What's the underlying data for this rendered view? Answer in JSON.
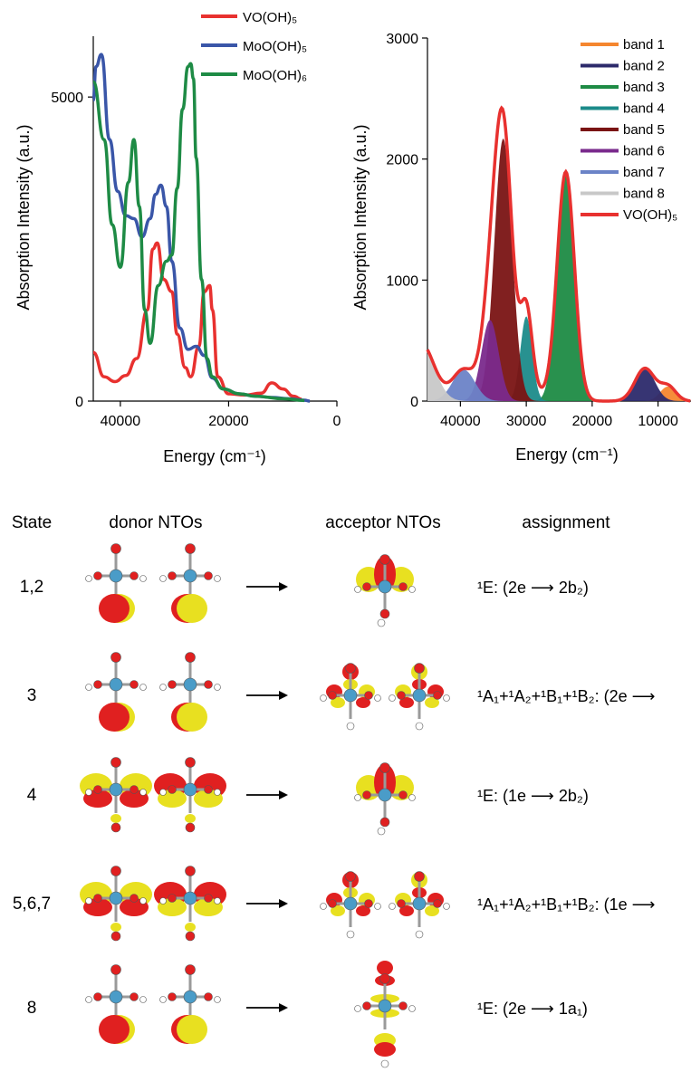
{
  "chart_data": [
    {
      "type": "line",
      "xlabel": "Energy (cm⁻¹)",
      "ylabel": "Absorption Intensity (a.u.)",
      "xlim": [
        45000,
        0
      ],
      "ylim": [
        0,
        6000
      ],
      "xticks": [
        "40000",
        "20000",
        "0"
      ],
      "yticks": [
        "0",
        "5000"
      ],
      "legend_position": "top",
      "series": [
        {
          "name": "VO(OH)₅",
          "color": "#e8312f",
          "x": [
            45000,
            43000,
            41000,
            39000,
            37000,
            35000,
            34000,
            33200,
            32000,
            30500,
            29500,
            28000,
            27000,
            25500,
            24500,
            23500,
            23000,
            22000,
            20000,
            17000,
            14000,
            12000,
            10000,
            8000,
            6500
          ],
          "y": [
            800,
            400,
            320,
            420,
            700,
            1500,
            2500,
            2600,
            2000,
            1800,
            1100,
            550,
            400,
            900,
            1800,
            1900,
            1500,
            400,
            120,
            100,
            130,
            300,
            200,
            80,
            30
          ]
        },
        {
          "name": "MoO(OH)₅",
          "color": "#3a56a8",
          "x": [
            45000,
            44500,
            43500,
            42000,
            40500,
            39000,
            37500,
            36000,
            34500,
            33500,
            32500,
            31500,
            30500,
            29000,
            27500,
            26000,
            24500,
            23000,
            21000,
            18000,
            15000,
            12000,
            9000,
            6000,
            5000
          ],
          "y": [
            4950,
            5500,
            5700,
            4300,
            3450,
            3050,
            3000,
            2700,
            3000,
            3400,
            3550,
            3200,
            2300,
            1200,
            850,
            900,
            750,
            380,
            200,
            120,
            80,
            60,
            40,
            15,
            0
          ]
        },
        {
          "name": "MoO(OH)₆",
          "color": "#1e8b45",
          "x": [
            45000,
            43000,
            41500,
            40000,
            38500,
            37500,
            36500,
            35500,
            34500,
            33000,
            31500,
            30500,
            29500,
            28500,
            27500,
            27000,
            26500,
            26000,
            25000,
            24000,
            23000,
            21000,
            18000,
            15000,
            10000,
            6000
          ],
          "y": [
            5250,
            4300,
            2900,
            2200,
            3600,
            4300,
            3200,
            1500,
            950,
            1900,
            2300,
            2400,
            3500,
            4800,
            5500,
            5550,
            5300,
            4000,
            2000,
            700,
            400,
            200,
            120,
            80,
            40,
            10
          ]
        }
      ]
    },
    {
      "type": "area",
      "xlabel": "Energy (cm⁻¹)",
      "ylabel": "Absorption Intensity (a.u.)",
      "xlim": [
        45000,
        5000
      ],
      "ylim": [
        0,
        3000
      ],
      "xticks": [
        "40000",
        "30000",
        "20000",
        "10000"
      ],
      "yticks": [
        "0",
        "1000",
        "2000",
        "3000"
      ],
      "legend_position": "top-right",
      "series": [
        {
          "name": "band 1",
          "color": "#f5862f",
          "center": 8500,
          "height": 120,
          "width": 1200
        },
        {
          "name": "band 2",
          "color": "#2c2a6b",
          "center": 12000,
          "height": 270,
          "width": 1500
        },
        {
          "name": "band 3",
          "color": "#1e8b45",
          "center": 24000,
          "height": 1880,
          "width": 1300
        },
        {
          "name": "band 4",
          "color": "#1c8b8a",
          "center": 30000,
          "height": 700,
          "width": 900
        },
        {
          "name": "band 5",
          "color": "#7a1414",
          "center": 33500,
          "height": 2170,
          "width": 1350
        },
        {
          "name": "band 6",
          "color": "#7a2a8c",
          "center": 35500,
          "height": 670,
          "width": 1300
        },
        {
          "name": "band 7",
          "color": "#6b83c7",
          "center": 39500,
          "height": 260,
          "width": 1700
        },
        {
          "name": "band 8",
          "color": "#c8c8c8",
          "center": 46000,
          "height": 480,
          "width": 2000
        },
        {
          "name": "VO(OH)₅",
          "color": "#e8312f",
          "sum": true
        }
      ]
    }
  ],
  "table": {
    "headers": {
      "state": "State",
      "donor": "donor NTOs",
      "acceptor": "acceptor NTOs",
      "assignment": "assignment"
    },
    "rows": [
      {
        "state": "1,2",
        "assignment": "¹E: (2e ⟶ 2b₂)",
        "donor_lobe": "down",
        "acceptor": "single-up"
      },
      {
        "state": "3",
        "assignment": "¹A₁+¹A₂+¹B₁+¹B₂: (2e ⟶",
        "donor_lobe": "down",
        "acceptor": "double-cross"
      },
      {
        "state": "4",
        "assignment": "¹E: (1e ⟶ 2b₂)",
        "donor_lobe": "side",
        "acceptor": "single-up"
      },
      {
        "state": "5,6,7",
        "assignment": "¹A₁+¹A₂+¹B₁+¹B₂: (1e ⟶",
        "donor_lobe": "side",
        "acceptor": "double-cross"
      },
      {
        "state": "8",
        "assignment": "¹E: (2e ⟶ 1a₁)",
        "donor_lobe": "down",
        "acceptor": "stack"
      }
    ]
  },
  "colors": {
    "red": "#e02020",
    "yellow": "#e8e020",
    "metal": "#4a9cc8",
    "hydrogen": "#ffffff"
  }
}
